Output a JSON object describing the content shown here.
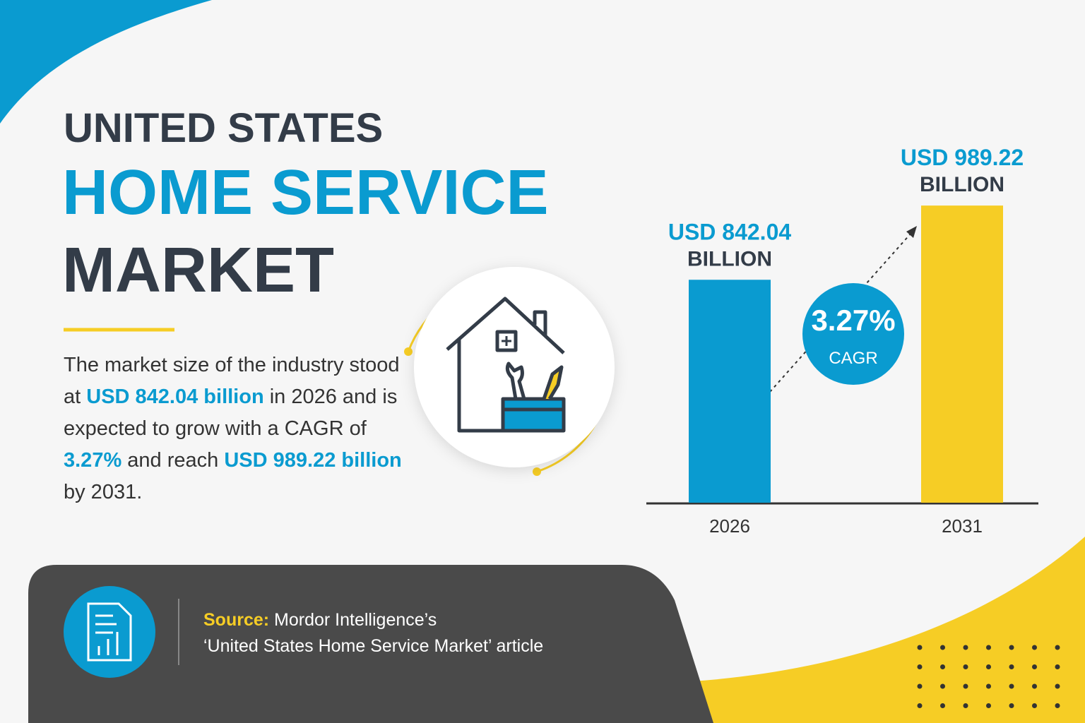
{
  "header": {
    "line1": "UNITED STATES",
    "line2": "HOME SERVICE",
    "line3": "MARKET"
  },
  "description": [
    "The market size of the industry stood at ",
    "USD 842.04 billion",
    " in 2026 and is expected to grow with a CAGR of ",
    "3.27%",
    " and reach ",
    "USD 989.22 billion",
    " by 2031."
  ],
  "source": {
    "label": "Source:",
    "lines": [
      "Mordor Intelligence’s",
      "‘United States Home Service Market’ article"
    ]
  },
  "chart_data": {
    "type": "bar",
    "categories": [
      "2026",
      "2031"
    ],
    "values": [
      842.04,
      989.22
    ],
    "value_labels": [
      "USD 842.04",
      "USD 989.22"
    ],
    "value_unit": "BILLION",
    "colors": [
      "#0a9bd0",
      "#f6cd25"
    ],
    "ylim": [
      400,
      1100
    ],
    "annotation": {
      "value": "3.27%",
      "label": "CAGR"
    }
  }
}
